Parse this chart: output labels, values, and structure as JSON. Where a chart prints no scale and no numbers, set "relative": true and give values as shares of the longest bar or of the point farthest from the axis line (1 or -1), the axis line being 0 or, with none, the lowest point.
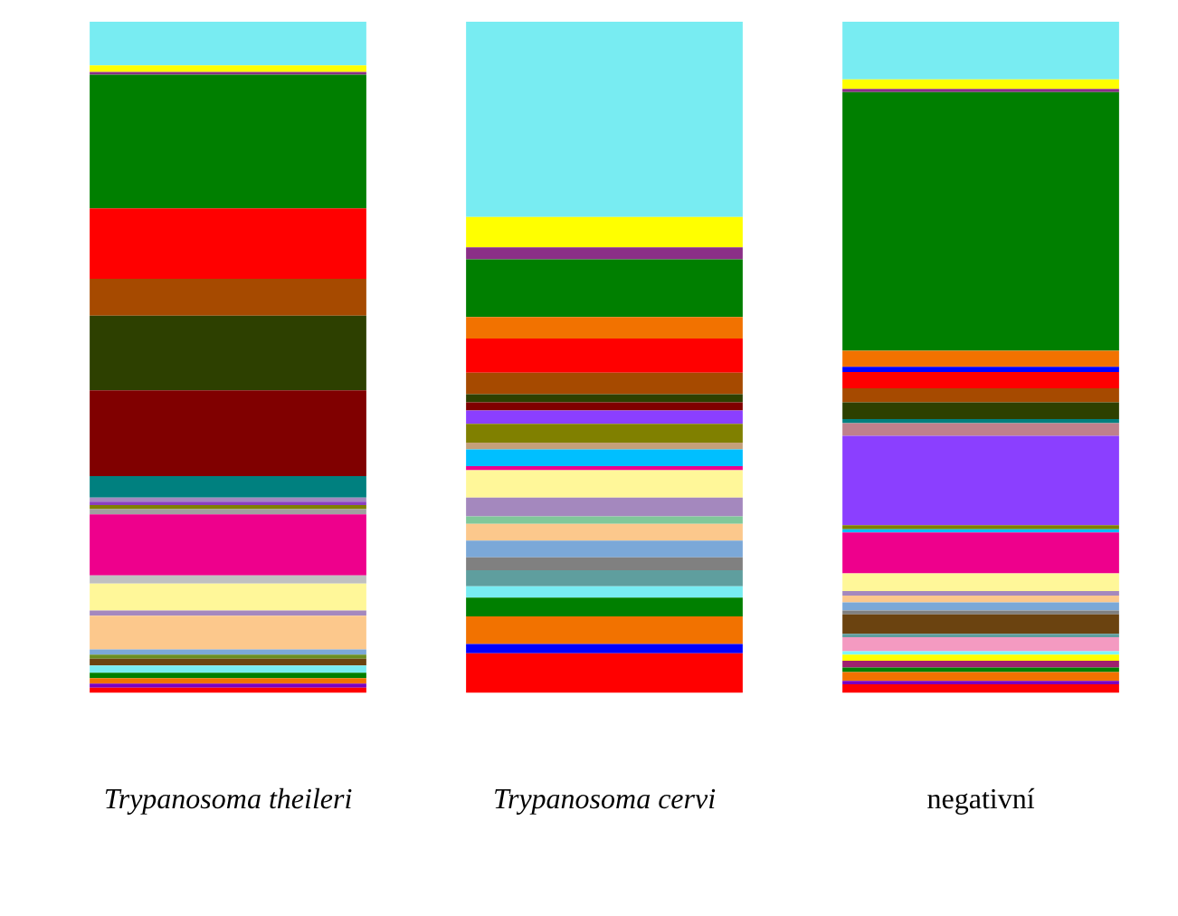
{
  "chart_data": {
    "type": "bar",
    "stacked": true,
    "relative": true,
    "legend": false,
    "categories": [
      "Trypanosoma theileri",
      "Trypanosoma cervi",
      "negativní"
    ],
    "series": [
      {
        "values": [
          0.008,
          0.059,
          0.013
        ],
        "colors": [
          "#ff0000",
          "#ff0000",
          "#ff0000"
        ]
      },
      {
        "values": [
          0.006,
          0.014,
          0.005
        ],
        "colors": [
          "#7a00c0",
          "#0000ff",
          "#7a00c0"
        ]
      },
      {
        "values": [
          0.008,
          0.041,
          0.013
        ],
        "colors": [
          "#f27200",
          "#f27200",
          "#f27200"
        ]
      },
      {
        "values": [
          0.008,
          0.028,
          0.007
        ],
        "colors": [
          "#007f00",
          "#007f00",
          "#007f00"
        ]
      },
      {
        "values": [
          0.011,
          0.017,
          0.01
        ],
        "colors": [
          "#78ecf2",
          "#78ecf2",
          "#a0206e"
        ]
      },
      {
        "values": [
          0.01,
          0.024,
          0.009
        ],
        "colors": [
          "#6b4310",
          "#5f9e9e",
          "#ffff00"
        ]
      },
      {
        "values": [
          0.006,
          0.019,
          0.005
        ],
        "colors": [
          "#6b8e23",
          "#808080",
          "#7ff7f7"
        ]
      },
      {
        "values": [
          0.008,
          0.025,
          0.021
        ],
        "colors": [
          "#7ba8d8",
          "#7ba8d8",
          "#f49ac1"
        ]
      },
      {
        "values": [
          0.05,
          0.025,
          0.005
        ],
        "colors": [
          "#fcc88c",
          "#fcc88c",
          "#5f9e9e"
        ]
      },
      {
        "values": [
          0.008,
          0.011,
          0.029
        ],
        "colors": [
          "#a488be",
          "#80c89a",
          "#6b4310"
        ]
      },
      {
        "values": [
          0.04,
          0.028,
          0.006
        ],
        "colors": [
          "#fff799",
          "#a488be",
          "#808080"
        ]
      },
      {
        "values": [
          0.012,
          0.041,
          0.012
        ],
        "colors": [
          "#c0c0c0",
          "#fff799",
          "#7ba8d8"
        ]
      },
      {
        "values": [
          0.091,
          0.006,
          0.01
        ],
        "colors": [
          "#ee008c",
          "#ee008c",
          "#fcc88c"
        ]
      },
      {
        "values": [
          0.008,
          0.025,
          0.007
        ],
        "colors": [
          "#a0a0a0",
          "#00bfff",
          "#a488be"
        ]
      },
      {
        "values": [
          0.006,
          0.01,
          0.026
        ],
        "colors": [
          "#808000",
          "#c4a07a",
          "#fff799"
        ]
      },
      {
        "values": [
          0.005,
          0.028,
          0.061
        ],
        "colors": [
          "#8b3fc0",
          "#808000",
          "#ee008c"
        ]
      },
      {
        "values": [
          0.006,
          0.02,
          0.005
        ],
        "colors": [
          "#a488be",
          "#8b3fff",
          "#00bfff"
        ]
      },
      {
        "values": [
          0.032,
          0.012,
          0.006
        ],
        "colors": [
          "#00807f",
          "#800000",
          "#808000"
        ]
      },
      {
        "values": [
          0.128,
          0.012,
          0.133
        ],
        "colors": [
          "#800000",
          "#2d4000",
          "#8b3fff"
        ]
      },
      {
        "values": [
          0.111,
          0.032,
          0.019
        ],
        "colors": [
          "#2d4000",
          "#a64a00",
          "#bf808c"
        ]
      },
      {
        "values": [
          0.055,
          0.051,
          0.006
        ],
        "colors": [
          "#a64a00",
          "#ff0000",
          "#00807f"
        ]
      },
      {
        "values": [
          0.105,
          0.032,
          0.025
        ],
        "colors": [
          "#ff0000",
          "#f27200",
          "#2d4000"
        ]
      },
      {
        "values": [
          0.199,
          0.086,
          0.021
        ],
        "colors": [
          "#007f00",
          "#007f00",
          "#a64a00"
        ]
      },
      {
        "values": [
          0.004,
          0.018,
          0.024
        ],
        "colors": [
          "#8b2f87",
          "#8b2f87",
          "#ff0000"
        ]
      },
      {
        "values": [
          0.01,
          0.045,
          0.008
        ],
        "colors": [
          "#ffff00",
          "#ffff00",
          "#0000ff"
        ]
      },
      {
        "values": [
          0.065,
          0.291,
          0.024
        ],
        "colors": [
          "#78ecf2",
          "#78ecf2",
          "#f27200"
        ]
      },
      {
        "values": [
          null,
          null,
          0.385
        ],
        "colors": [
          "#ffffff",
          "#ffffff",
          "#007f00"
        ]
      },
      {
        "values": [
          null,
          null,
          0.005
        ],
        "colors": [
          "#ffffff",
          "#ffffff",
          "#8b2f87"
        ]
      },
      {
        "values": [
          null,
          null,
          0.014
        ],
        "colors": [
          "#ffffff",
          "#ffffff",
          "#ffff00"
        ]
      },
      {
        "values": [
          null,
          null,
          0.086
        ],
        "colors": [
          "#ffffff",
          "#ffffff",
          "#78ecf2"
        ]
      }
    ]
  }
}
